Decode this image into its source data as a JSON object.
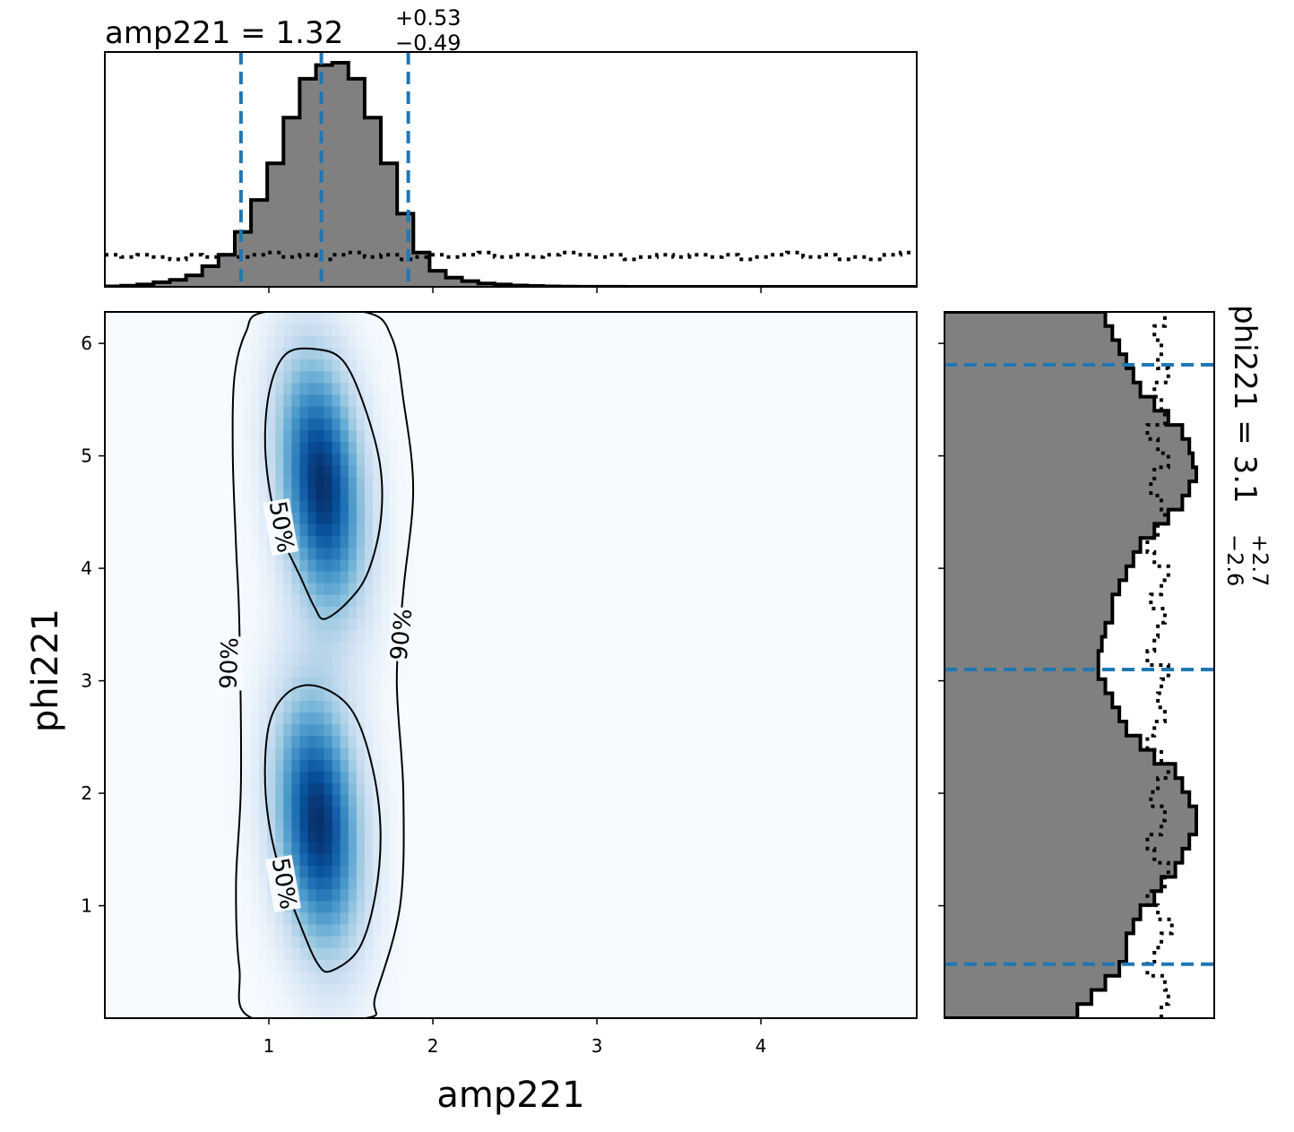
{
  "chart_data": {
    "type": "corner",
    "params": [
      "amp221",
      "phi221"
    ],
    "xlabel": "amp221",
    "ylabel": "phi221",
    "xlim": [
      0.0,
      4.95
    ],
    "ylim": [
      0.0,
      6.28
    ],
    "xticks": [
      "1",
      "2",
      "3",
      "4"
    ],
    "yticks": [
      "1",
      "2",
      "3",
      "4",
      "5",
      "6"
    ],
    "colormap": "Blues",
    "quantile_color": "#1f77b4",
    "marginal_fill_color": "#808080",
    "summary_amp221": {
      "median": "1.32",
      "plus": "+0.53",
      "minus": "−0.49",
      "lines": [
        0.83,
        1.32,
        1.85
      ]
    },
    "summary_phi221": {
      "median": "3.1",
      "plus": "+2.7",
      "minus": "−2.6",
      "lines": [
        0.48,
        3.1,
        5.81
      ]
    },
    "contour_labels": [
      "50%",
      "90%"
    ],
    "modes": [
      {
        "x": 1.32,
        "y": 4.75,
        "sx": 0.17,
        "sy": 0.75,
        "rho": -0.25
      },
      {
        "x": 1.3,
        "y": 1.75,
        "sx": 0.17,
        "sy": 0.75,
        "rho": -0.2
      }
    ],
    "contour_50": [
      [
        [
          1.34,
          3.55
        ],
        [
          1.48,
          3.7
        ],
        [
          1.6,
          3.95
        ],
        [
          1.68,
          4.4
        ],
        [
          1.68,
          4.9
        ],
        [
          1.58,
          5.45
        ],
        [
          1.45,
          5.85
        ],
        [
          1.28,
          5.95
        ],
        [
          1.1,
          5.9
        ],
        [
          1.0,
          5.55
        ],
        [
          0.98,
          5.0
        ],
        [
          1.05,
          4.4
        ],
        [
          1.2,
          3.9
        ],
        [
          1.28,
          3.65
        ]
      ],
      [
        [
          1.38,
          0.42
        ],
        [
          1.55,
          0.62
        ],
        [
          1.65,
          1.1
        ],
        [
          1.68,
          1.7
        ],
        [
          1.62,
          2.3
        ],
        [
          1.5,
          2.75
        ],
        [
          1.3,
          2.95
        ],
        [
          1.12,
          2.9
        ],
        [
          1.0,
          2.6
        ],
        [
          0.98,
          2.0
        ],
        [
          1.05,
          1.4
        ],
        [
          1.2,
          0.8
        ],
        [
          1.3,
          0.48
        ]
      ]
    ],
    "contour_90": [
      [
        [
          0.9,
          0.0
        ],
        [
          0.82,
          0.45
        ],
        [
          0.8,
          1.2
        ],
        [
          0.83,
          2.1
        ],
        [
          0.82,
          3.5
        ],
        [
          0.8,
          4.2
        ],
        [
          0.78,
          5.0
        ],
        [
          0.79,
          5.7
        ],
        [
          0.86,
          6.1
        ],
        [
          0.98,
          6.28
        ],
        [
          1.58,
          6.28
        ],
        [
          1.75,
          6.05
        ],
        [
          1.82,
          5.5
        ],
        [
          1.88,
          4.7
        ],
        [
          1.82,
          3.8
        ],
        [
          1.78,
          3.0
        ],
        [
          1.82,
          2.0
        ],
        [
          1.8,
          1.0
        ],
        [
          1.65,
          0.2
        ],
        [
          1.59,
          0.0
        ]
      ]
    ],
    "marginal_amp221": {
      "bin_edges": [
        0.0,
        4.95
      ],
      "posterior_counts": [
        0.2,
        0.5,
        1,
        2,
        3,
        5,
        9,
        14,
        24,
        38,
        54,
        74,
        91,
        97,
        98,
        91,
        74,
        54,
        32,
        15,
        7,
        4,
        2.5,
        1.5,
        1,
        0.6,
        0.4,
        0.2,
        0.1,
        0.05,
        0.03,
        0.02,
        0.01,
        0.01,
        0,
        0,
        0,
        0,
        0,
        0,
        0,
        0,
        0,
        0,
        0,
        0,
        0,
        0,
        0,
        0
      ],
      "prior_counts": [
        14,
        13,
        14,
        13,
        12,
        14,
        13,
        14,
        13,
        14,
        15,
        13,
        14,
        12,
        14,
        15,
        13,
        14,
        12,
        13,
        14,
        13,
        14,
        15,
        13,
        14,
        13,
        14,
        15,
        14,
        13,
        14,
        12,
        13,
        14,
        13,
        14,
        13,
        14,
        12,
        13,
        14,
        15,
        13,
        14,
        12,
        13,
        12,
        14,
        15
      ]
    },
    "marginal_phi221": {
      "bin_edges": [
        0.0,
        6.28
      ],
      "posterior_counts": [
        38,
        42,
        46,
        50,
        52,
        52,
        54,
        56,
        60,
        62,
        66,
        68,
        70,
        72,
        72,
        70,
        68,
        66,
        60,
        56,
        52,
        50,
        48,
        46,
        44,
        44,
        45,
        46,
        48,
        48,
        50,
        52,
        54,
        56,
        60,
        64,
        68,
        70,
        72,
        71,
        70,
        68,
        64,
        60,
        56,
        54,
        52,
        50,
        48,
        46
      ],
      "prior_counts": [
        62,
        64,
        63,
        58,
        60,
        62,
        65,
        61,
        58,
        63,
        64,
        60,
        58,
        62,
        63,
        59,
        61,
        64,
        62,
        58,
        60,
        63,
        61,
        62,
        64,
        58,
        60,
        61,
        63,
        59,
        62,
        64,
        60,
        58,
        61,
        63,
        62,
        59,
        60,
        64,
        61,
        58,
        63,
        62,
        60,
        64,
        61,
        62,
        60,
        63
      ]
    }
  }
}
